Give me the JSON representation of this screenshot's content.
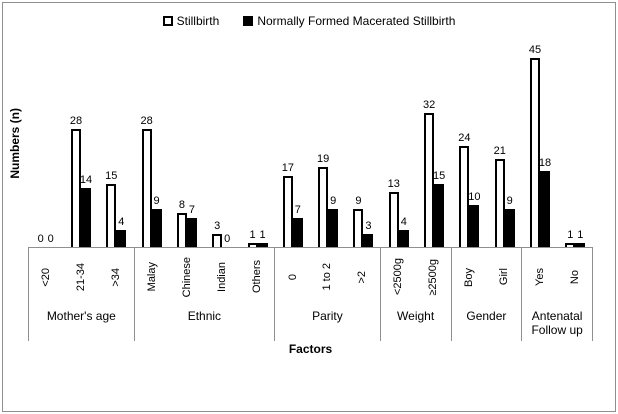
{
  "chart_data": {
    "type": "bar",
    "title": "",
    "ylabel": "Numbers (n)",
    "xlabel": "Factors",
    "ylim": [
      0,
      45
    ],
    "grid": false,
    "legend_position": "top-center",
    "series": [
      {
        "name": "Stillbirth",
        "fill": "#ffffff",
        "border": "#000000"
      },
      {
        "name": "Normally Formed Macerated Stillbirth",
        "fill": "#000000",
        "border": "#000000"
      }
    ],
    "groups": [
      {
        "label": "Mother's age",
        "categories": [
          "<20",
          "21-34",
          ">34"
        ],
        "stillbirth": [
          0,
          28,
          15
        ],
        "macerated": [
          0,
          14,
          4
        ]
      },
      {
        "label": "Ethnic",
        "categories": [
          "Malay",
          "Chinese",
          "Indian",
          "Others"
        ],
        "stillbirth": [
          28,
          8,
          3,
          1
        ],
        "macerated": [
          9,
          7,
          0,
          1
        ]
      },
      {
        "label": "Parity",
        "categories": [
          "0",
          "1 to 2",
          ">2"
        ],
        "stillbirth": [
          17,
          19,
          9
        ],
        "macerated": [
          7,
          9,
          3
        ]
      },
      {
        "label": "Weight",
        "categories": [
          "<2500g",
          "≥2500g"
        ],
        "stillbirth": [
          13,
          32
        ],
        "macerated": [
          4,
          15
        ]
      },
      {
        "label": "Gender",
        "categories": [
          "Boy",
          "Girl"
        ],
        "stillbirth": [
          24,
          21
        ],
        "macerated": [
          10,
          9
        ]
      },
      {
        "label": "Antenatal Follow up",
        "categories": [
          "Yes",
          "No"
        ],
        "stillbirth": [
          45,
          1
        ],
        "macerated": [
          18,
          1
        ]
      }
    ],
    "axis_line_color": "#8f8f8f"
  }
}
